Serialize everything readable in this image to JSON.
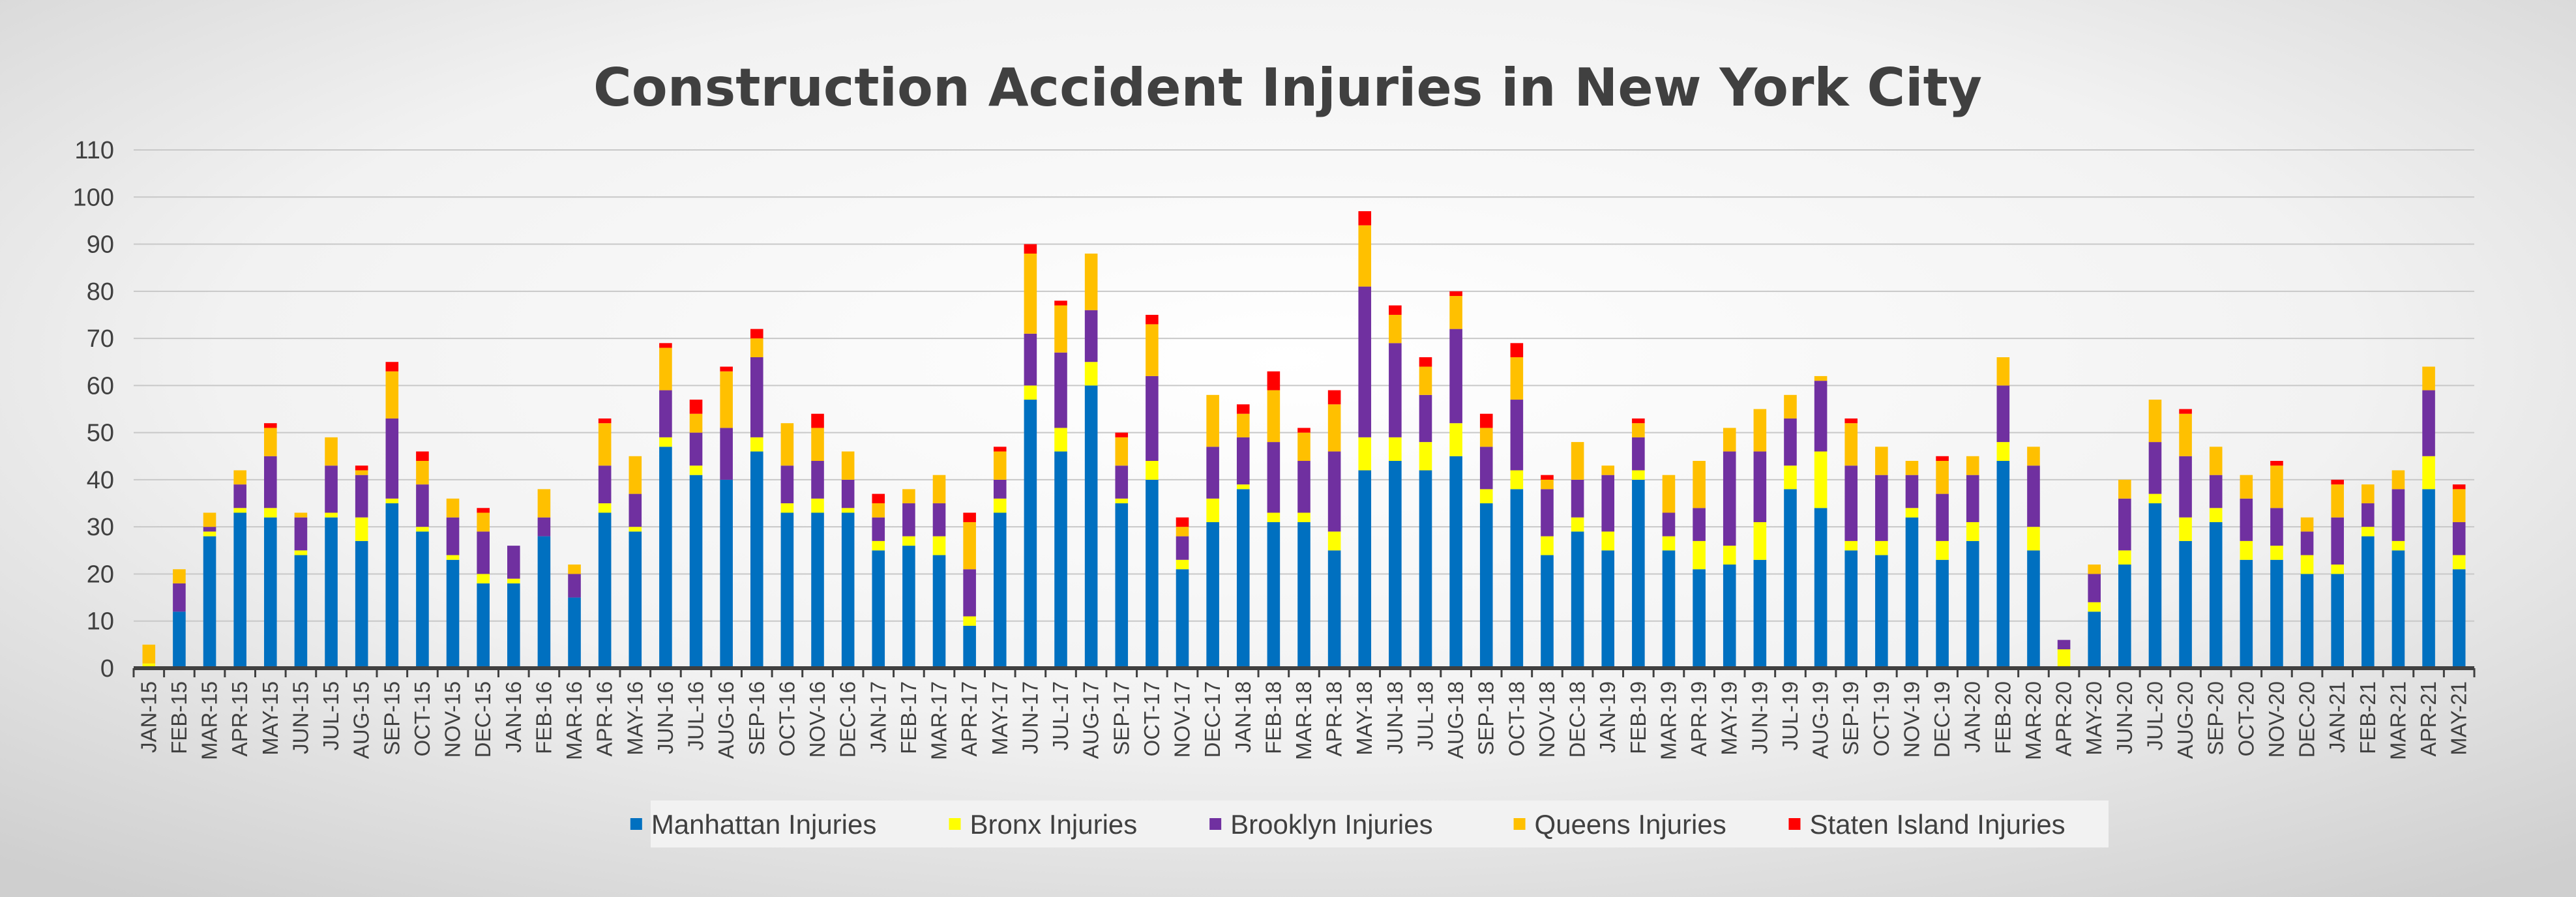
{
  "chart_data": {
    "type": "bar",
    "stacked": true,
    "title": "Construction Accident Injuries in New York City",
    "xlabel": "",
    "ylabel": "",
    "ylim": [
      0,
      110
    ],
    "yticks": [
      0,
      10,
      20,
      30,
      40,
      50,
      60,
      70,
      80,
      90,
      100,
      110
    ],
    "grid": true,
    "legend_position": "bottom",
    "categories": [
      "JAN-15",
      "FEB-15",
      "MAR-15",
      "APR-15",
      "MAY-15",
      "JUN-15",
      "JUL-15",
      "AUG-15",
      "SEP-15",
      "OCT-15",
      "NOV-15",
      "DEC-15",
      "JAN-16",
      "FEB-16",
      "MAR-16",
      "APR-16",
      "MAY-16",
      "JUN-16",
      "JUL-16",
      "AUG-16",
      "SEP-16",
      "OCT-16",
      "NOV-16",
      "DEC-16",
      "JAN-17",
      "FEB-17",
      "MAR-17",
      "APR-17",
      "MAY-17",
      "JUN-17",
      "JUL-17",
      "AUG-17",
      "SEP-17",
      "OCT-17",
      "NOV-17",
      "DEC-17",
      "JAN-18",
      "FEB-18",
      "MAR-18",
      "APR-18",
      "MAY-18",
      "JUN-18",
      "JUL-18",
      "AUG-18",
      "SEP-18",
      "OCT-18",
      "NOV-18",
      "DEC-18",
      "JAN-19",
      "FEB-19",
      "MAR-19",
      "APR-19",
      "MAY-19",
      "JUN-19",
      "JUL-19",
      "AUG-19",
      "SEP-19",
      "OCT-19",
      "NOV-19",
      "DEC-19",
      "JAN-20",
      "FEB-20",
      "MAR-20",
      "APR-20",
      "MAY-20",
      "JUN-20",
      "JUL-20",
      "AUG-20",
      "SEP-20",
      "OCT-20",
      "NOV-20",
      "DEC-20",
      "JAN-21",
      "FEB-21",
      "MAR-21",
      "APR-21",
      "MAY-21"
    ],
    "series": [
      {
        "name": "Manhattan Injuries",
        "color": "#0070C0",
        "values": [
          0,
          12,
          28,
          33,
          32,
          24,
          32,
          27,
          35,
          29,
          23,
          18,
          18,
          28,
          15,
          33,
          29,
          47,
          41,
          40,
          46,
          33,
          33,
          33,
          25,
          26,
          24,
          9,
          33,
          57,
          46,
          60,
          35,
          40,
          21,
          31,
          38,
          31,
          31,
          25,
          42,
          44,
          42,
          45,
          35,
          38,
          24,
          29,
          25,
          40,
          25,
          21,
          22,
          23,
          38,
          34,
          25,
          24,
          32,
          23,
          27,
          44,
          25,
          0,
          12,
          22,
          35,
          27,
          31,
          23,
          23,
          20,
          20,
          28,
          25,
          38,
          21
        ]
      },
      {
        "name": "Bronx Injuries",
        "color": "#FFFF00",
        "values": [
          1,
          0,
          1,
          1,
          2,
          1,
          1,
          5,
          1,
          1,
          1,
          2,
          1,
          0,
          0,
          2,
          1,
          2,
          2,
          0,
          3,
          2,
          3,
          1,
          2,
          2,
          4,
          2,
          3,
          3,
          5,
          5,
          1,
          4,
          2,
          5,
          1,
          2,
          2,
          4,
          7,
          5,
          6,
          7,
          3,
          4,
          4,
          3,
          4,
          2,
          3,
          6,
          4,
          8,
          5,
          12,
          2,
          3,
          2,
          4,
          4,
          4,
          5,
          4,
          2,
          3,
          2,
          5,
          3,
          4,
          3,
          4,
          2,
          2,
          2,
          7,
          3
        ]
      },
      {
        "name": "Brooklyn Injuries",
        "color": "#7030A0",
        "values": [
          0,
          6,
          1,
          5,
          11,
          7,
          10,
          9,
          17,
          9,
          8,
          9,
          7,
          4,
          5,
          8,
          7,
          10,
          7,
          11,
          17,
          8,
          8,
          6,
          5,
          7,
          7,
          10,
          4,
          11,
          16,
          11,
          7,
          18,
          5,
          11,
          10,
          15,
          11,
          17,
          32,
          20,
          10,
          20,
          9,
          15,
          10,
          8,
          12,
          7,
          5,
          7,
          20,
          15,
          10,
          15,
          16,
          14,
          7,
          10,
          10,
          12,
          13,
          2,
          6,
          11,
          11,
          13,
          7,
          9,
          8,
          5,
          10,
          5,
          11,
          14,
          7
        ]
      },
      {
        "name": "Queens Injuries",
        "color": "#FFC000",
        "values": [
          4,
          3,
          3,
          3,
          6,
          1,
          6,
          1,
          10,
          5,
          4,
          4,
          0,
          6,
          2,
          9,
          8,
          9,
          4,
          12,
          4,
          9,
          7,
          6,
          3,
          3,
          6,
          10,
          6,
          17,
          10,
          12,
          6,
          11,
          2,
          11,
          5,
          11,
          6,
          10,
          13,
          6,
          6,
          7,
          4,
          9,
          2,
          8,
          2,
          3,
          8,
          10,
          5,
          9,
          5,
          1,
          9,
          6,
          3,
          7,
          4,
          6,
          4,
          0,
          2,
          4,
          9,
          9,
          6,
          5,
          9,
          3,
          7,
          4,
          4,
          5,
          7
        ]
      },
      {
        "name": "Staten Island Injuries",
        "color": "#FF0000",
        "values": [
          0,
          0,
          0,
          0,
          1,
          0,
          0,
          1,
          2,
          2,
          0,
          1,
          0,
          0,
          0,
          1,
          0,
          1,
          3,
          1,
          2,
          0,
          3,
          0,
          2,
          0,
          0,
          2,
          1,
          2,
          1,
          0,
          1,
          2,
          2,
          0,
          2,
          4,
          1,
          3,
          3,
          2,
          2,
          1,
          3,
          3,
          1,
          0,
          0,
          1,
          0,
          0,
          0,
          0,
          0,
          0,
          1,
          0,
          0,
          1,
          0,
          0,
          0,
          0,
          0,
          0,
          0,
          1,
          0,
          0,
          1,
          0,
          1,
          0,
          0,
          0,
          1
        ]
      }
    ]
  }
}
